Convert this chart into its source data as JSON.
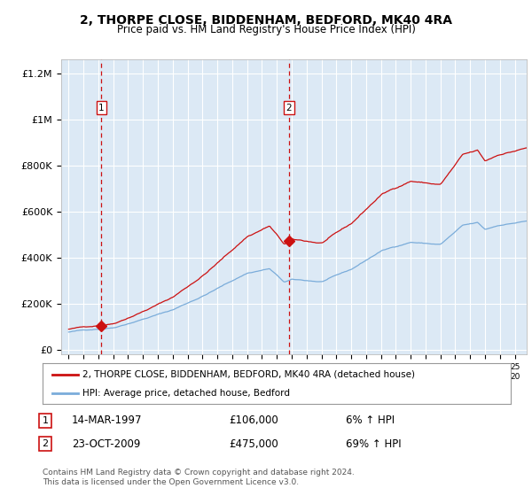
{
  "title1": "2, THORPE CLOSE, BIDDENHAM, BEDFORD, MK40 4RA",
  "title2": "Price paid vs. HM Land Registry's House Price Index (HPI)",
  "bg_color": "#dce9f5",
  "hpi_color": "#7aacda",
  "sale_color": "#cc1111",
  "dashed_color": "#cc1111",
  "ylim_max": 1100000,
  "yticks": [
    0,
    200000,
    400000,
    600000,
    800000,
    1000000
  ],
  "ytick_labels": [
    "£0",
    "£200K",
    "£400K",
    "£600K",
    "£800K",
    "£1M"
  ],
  "ytick_top": 1200000,
  "ytick_top_label": "£1.2M",
  "sale1_year": 1997.21,
  "sale1_price": 106000,
  "sale2_year": 2009.81,
  "sale2_price": 475000,
  "legend1": "2, THORPE CLOSE, BIDDENHAM, BEDFORD, MK40 4RA (detached house)",
  "legend2": "HPI: Average price, detached house, Bedford",
  "ann1_text": "14-MAR-1997",
  "ann1_price": "£106,000",
  "ann1_pct": "6% ↑ HPI",
  "ann2_text": "23-OCT-2009",
  "ann2_price": "£475,000",
  "ann2_pct": "69% ↑ HPI",
  "footer": "Contains HM Land Registry data © Crown copyright and database right 2024.\nThis data is licensed under the Open Government Licence v3.0."
}
